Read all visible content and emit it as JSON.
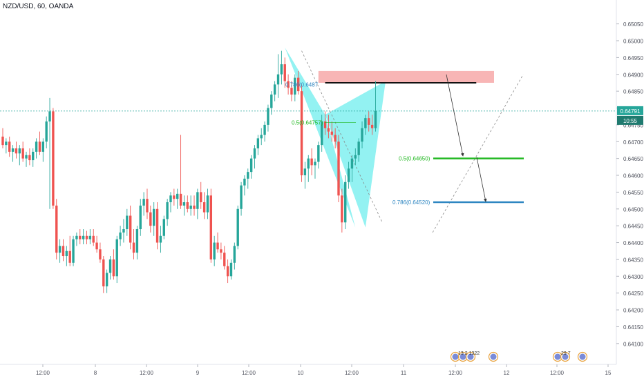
{
  "symbol_header": "NZD/USD, 60, OANDA",
  "price_badge": {
    "price": "0.64791",
    "countdown": "10:55"
  },
  "colors": {
    "up": "#26a69a",
    "down": "#ef5350",
    "pattern_fill": "#80f0f0",
    "sell_zone": "#f7a8a8",
    "target1": "#22b822",
    "target2": "#2e86c1",
    "last_price_line": "#26a69a",
    "grid_axis": "#e0e3eb"
  },
  "annotations": {
    "fib_0786_top": "0.786(0.6487",
    "fib_05": "0.5(0.64757)",
    "fib_target1": "0.5(0.64650)",
    "fib_target2": "0.786(0.64520)"
  },
  "event_badges": {
    "group1": "13 2 1322",
    "group2": "29 7"
  },
  "chart_data": {
    "type": "candlestick",
    "title": "NZD/USD, 60, OANDA",
    "ylim": [
      0.64075,
      0.6508
    ],
    "y_ticks": [
      "0.65050",
      "0.65000",
      "0.64950",
      "0.64900",
      "0.64850",
      "0.64800",
      "0.64750",
      "0.64700",
      "0.64650",
      "0.64600",
      "0.64550",
      "0.64500",
      "0.64450",
      "0.64400",
      "0.64350",
      "0.64300",
      "0.64250",
      "0.64200",
      "0.64150",
      "0.64100"
    ],
    "x_ticks": [
      "12:00",
      "8",
      "12:00",
      "9",
      "12:00",
      "10",
      "12:00",
      "11",
      "12:00",
      "12",
      "12:00",
      "15"
    ],
    "last_price": 0.64791,
    "candles": [
      {
        "o": 0.64715,
        "h": 0.6474,
        "l": 0.6468,
        "c": 0.6469
      },
      {
        "o": 0.6469,
        "h": 0.6471,
        "l": 0.64665,
        "c": 0.647
      },
      {
        "o": 0.647,
        "h": 0.64715,
        "l": 0.64655,
        "c": 0.6467
      },
      {
        "o": 0.6467,
        "h": 0.6469,
        "l": 0.6464,
        "c": 0.6468
      },
      {
        "o": 0.6468,
        "h": 0.647,
        "l": 0.6465,
        "c": 0.64665
      },
      {
        "o": 0.64665,
        "h": 0.6469,
        "l": 0.6463,
        "c": 0.6468
      },
      {
        "o": 0.6468,
        "h": 0.647,
        "l": 0.6464,
        "c": 0.6465
      },
      {
        "o": 0.6465,
        "h": 0.6467,
        "l": 0.64625,
        "c": 0.6466
      },
      {
        "o": 0.6466,
        "h": 0.6468,
        "l": 0.6463,
        "c": 0.64645
      },
      {
        "o": 0.64645,
        "h": 0.6468,
        "l": 0.64625,
        "c": 0.6467
      },
      {
        "o": 0.6467,
        "h": 0.6471,
        "l": 0.6465,
        "c": 0.647
      },
      {
        "o": 0.647,
        "h": 0.6473,
        "l": 0.6466,
        "c": 0.6467
      },
      {
        "o": 0.6467,
        "h": 0.6471,
        "l": 0.6464,
        "c": 0.647
      },
      {
        "o": 0.647,
        "h": 0.64775,
        "l": 0.6468,
        "c": 0.6476
      },
      {
        "o": 0.6476,
        "h": 0.6483,
        "l": 0.645,
        "c": 0.6479
      },
      {
        "o": 0.6479,
        "h": 0.648,
        "l": 0.645,
        "c": 0.6451
      },
      {
        "o": 0.6451,
        "h": 0.6453,
        "l": 0.6435,
        "c": 0.6437
      },
      {
        "o": 0.6437,
        "h": 0.6441,
        "l": 0.6434,
        "c": 0.6439
      },
      {
        "o": 0.6439,
        "h": 0.6441,
        "l": 0.64345,
        "c": 0.6436
      },
      {
        "o": 0.6436,
        "h": 0.6439,
        "l": 0.6433,
        "c": 0.64375
      },
      {
        "o": 0.64375,
        "h": 0.6442,
        "l": 0.6433,
        "c": 0.6434
      },
      {
        "o": 0.6434,
        "h": 0.6442,
        "l": 0.6433,
        "c": 0.6441
      },
      {
        "o": 0.6441,
        "h": 0.6443,
        "l": 0.6439,
        "c": 0.6442
      },
      {
        "o": 0.6442,
        "h": 0.6444,
        "l": 0.64395,
        "c": 0.6441
      },
      {
        "o": 0.6441,
        "h": 0.6444,
        "l": 0.64395,
        "c": 0.6442
      },
      {
        "o": 0.6442,
        "h": 0.64435,
        "l": 0.64395,
        "c": 0.6441
      },
      {
        "o": 0.6441,
        "h": 0.6444,
        "l": 0.64395,
        "c": 0.6442
      },
      {
        "o": 0.6442,
        "h": 0.6444,
        "l": 0.6439,
        "c": 0.644
      },
      {
        "o": 0.644,
        "h": 0.6442,
        "l": 0.6437,
        "c": 0.6438
      },
      {
        "o": 0.6438,
        "h": 0.644,
        "l": 0.6434,
        "c": 0.6435
      },
      {
        "o": 0.6435,
        "h": 0.6436,
        "l": 0.6425,
        "c": 0.6427
      },
      {
        "o": 0.6427,
        "h": 0.6432,
        "l": 0.6425,
        "c": 0.6431
      },
      {
        "o": 0.6431,
        "h": 0.6436,
        "l": 0.6429,
        "c": 0.6435
      },
      {
        "o": 0.6435,
        "h": 0.6438,
        "l": 0.6429,
        "c": 0.643
      },
      {
        "o": 0.643,
        "h": 0.6442,
        "l": 0.6428,
        "c": 0.6441
      },
      {
        "o": 0.6441,
        "h": 0.6445,
        "l": 0.6439,
        "c": 0.6443
      },
      {
        "o": 0.6443,
        "h": 0.6447,
        "l": 0.644,
        "c": 0.6444
      },
      {
        "o": 0.6444,
        "h": 0.645,
        "l": 0.6442,
        "c": 0.6448
      },
      {
        "o": 0.6448,
        "h": 0.6451,
        "l": 0.6438,
        "c": 0.644
      },
      {
        "o": 0.644,
        "h": 0.6444,
        "l": 0.6435,
        "c": 0.6437
      },
      {
        "o": 0.6437,
        "h": 0.6445,
        "l": 0.6435,
        "c": 0.6444
      },
      {
        "o": 0.6444,
        "h": 0.6453,
        "l": 0.6442,
        "c": 0.6451
      },
      {
        "o": 0.6451,
        "h": 0.6455,
        "l": 0.6448,
        "c": 0.6453
      },
      {
        "o": 0.6453,
        "h": 0.6456,
        "l": 0.6447,
        "c": 0.6449
      },
      {
        "o": 0.6449,
        "h": 0.6451,
        "l": 0.6443,
        "c": 0.6445
      },
      {
        "o": 0.6445,
        "h": 0.6452,
        "l": 0.6442,
        "c": 0.645
      },
      {
        "o": 0.645,
        "h": 0.6452,
        "l": 0.6438,
        "c": 0.644
      },
      {
        "o": 0.644,
        "h": 0.6445,
        "l": 0.6437,
        "c": 0.6442
      },
      {
        "o": 0.6442,
        "h": 0.6448,
        "l": 0.6441,
        "c": 0.6447
      },
      {
        "o": 0.6447,
        "h": 0.6453,
        "l": 0.6445,
        "c": 0.6452
      },
      {
        "o": 0.6452,
        "h": 0.6455,
        "l": 0.6449,
        "c": 0.6454
      },
      {
        "o": 0.6454,
        "h": 0.6456,
        "l": 0.6451,
        "c": 0.6453
      },
      {
        "o": 0.6453,
        "h": 0.6456,
        "l": 0.645,
        "c": 0.64545
      },
      {
        "o": 0.64545,
        "h": 0.6472,
        "l": 0.645,
        "c": 0.6451
      },
      {
        "o": 0.6451,
        "h": 0.6454,
        "l": 0.6448,
        "c": 0.6452
      },
      {
        "o": 0.6452,
        "h": 0.6454,
        "l": 0.6449,
        "c": 0.645
      },
      {
        "o": 0.645,
        "h": 0.6454,
        "l": 0.6448,
        "c": 0.6451
      },
      {
        "o": 0.6451,
        "h": 0.6454,
        "l": 0.6448,
        "c": 0.645
      },
      {
        "o": 0.645,
        "h": 0.6456,
        "l": 0.6447,
        "c": 0.6455
      },
      {
        "o": 0.6455,
        "h": 0.6458,
        "l": 0.645,
        "c": 0.6452
      },
      {
        "o": 0.6452,
        "h": 0.6455,
        "l": 0.6447,
        "c": 0.6449
      },
      {
        "o": 0.6449,
        "h": 0.6456,
        "l": 0.6447,
        "c": 0.6454
      },
      {
        "o": 0.6454,
        "h": 0.6456,
        "l": 0.6434,
        "c": 0.6435
      },
      {
        "o": 0.6435,
        "h": 0.6442,
        "l": 0.6433,
        "c": 0.644
      },
      {
        "o": 0.644,
        "h": 0.6443,
        "l": 0.6437,
        "c": 0.6438
      },
      {
        "o": 0.6438,
        "h": 0.644,
        "l": 0.6435,
        "c": 0.6437
      },
      {
        "o": 0.6437,
        "h": 0.6439,
        "l": 0.6432,
        "c": 0.6433
      },
      {
        "o": 0.6433,
        "h": 0.6435,
        "l": 0.6428,
        "c": 0.643
      },
      {
        "o": 0.643,
        "h": 0.6435,
        "l": 0.6429,
        "c": 0.6434
      },
      {
        "o": 0.6434,
        "h": 0.644,
        "l": 0.6432,
        "c": 0.6439
      },
      {
        "o": 0.6439,
        "h": 0.6451,
        "l": 0.6438,
        "c": 0.645
      },
      {
        "o": 0.645,
        "h": 0.6458,
        "l": 0.6448,
        "c": 0.6457
      },
      {
        "o": 0.6457,
        "h": 0.646,
        "l": 0.6454,
        "c": 0.6459
      },
      {
        "o": 0.6459,
        "h": 0.6462,
        "l": 0.6456,
        "c": 0.6461
      },
      {
        "o": 0.6461,
        "h": 0.6466,
        "l": 0.6459,
        "c": 0.6465
      },
      {
        "o": 0.6465,
        "h": 0.6469,
        "l": 0.6462,
        "c": 0.6468
      },
      {
        "o": 0.6468,
        "h": 0.6472,
        "l": 0.6466,
        "c": 0.6471
      },
      {
        "o": 0.6471,
        "h": 0.6474,
        "l": 0.6469,
        "c": 0.6472
      },
      {
        "o": 0.6472,
        "h": 0.6476,
        "l": 0.647,
        "c": 0.6475
      },
      {
        "o": 0.6475,
        "h": 0.6481,
        "l": 0.6473,
        "c": 0.648
      },
      {
        "o": 0.648,
        "h": 0.6485,
        "l": 0.6478,
        "c": 0.6484
      },
      {
        "o": 0.6484,
        "h": 0.6488,
        "l": 0.6482,
        "c": 0.6487
      },
      {
        "o": 0.6487,
        "h": 0.6496,
        "l": 0.6483,
        "c": 0.649
      },
      {
        "o": 0.649,
        "h": 0.6497,
        "l": 0.6487,
        "c": 0.6493
      },
      {
        "o": 0.6493,
        "h": 0.6495,
        "l": 0.6486,
        "c": 0.6488
      },
      {
        "o": 0.6488,
        "h": 0.649,
        "l": 0.6484,
        "c": 0.6486
      },
      {
        "o": 0.6486,
        "h": 0.6488,
        "l": 0.6482,
        "c": 0.6484
      },
      {
        "o": 0.6484,
        "h": 0.649,
        "l": 0.6482,
        "c": 0.6489
      },
      {
        "o": 0.6489,
        "h": 0.6491,
        "l": 0.6484,
        "c": 0.6485
      },
      {
        "o": 0.6485,
        "h": 0.6487,
        "l": 0.6458,
        "c": 0.646
      },
      {
        "o": 0.646,
        "h": 0.6464,
        "l": 0.6456,
        "c": 0.6462
      },
      {
        "o": 0.6462,
        "h": 0.6466,
        "l": 0.6458,
        "c": 0.6465
      },
      {
        "o": 0.6465,
        "h": 0.6468,
        "l": 0.646,
        "c": 0.6463
      },
      {
        "o": 0.6463,
        "h": 0.6465,
        "l": 0.6459,
        "c": 0.6464
      },
      {
        "o": 0.6464,
        "h": 0.647,
        "l": 0.6462,
        "c": 0.6469
      },
      {
        "o": 0.6469,
        "h": 0.6478,
        "l": 0.6467,
        "c": 0.6476
      },
      {
        "o": 0.6476,
        "h": 0.6479,
        "l": 0.6472,
        "c": 0.6474
      },
      {
        "o": 0.6474,
        "h": 0.6478,
        "l": 0.6471,
        "c": 0.6473
      },
      {
        "o": 0.6473,
        "h": 0.6476,
        "l": 0.647,
        "c": 0.6472
      },
      {
        "o": 0.6472,
        "h": 0.6474,
        "l": 0.6468,
        "c": 0.647
      },
      {
        "o": 0.647,
        "h": 0.6472,
        "l": 0.6452,
        "c": 0.6454
      },
      {
        "o": 0.6454,
        "h": 0.6456,
        "l": 0.6443,
        "c": 0.6446
      },
      {
        "o": 0.6446,
        "h": 0.646,
        "l": 0.6444,
        "c": 0.6458
      },
      {
        "o": 0.6458,
        "h": 0.6464,
        "l": 0.6456,
        "c": 0.6462
      },
      {
        "o": 0.6462,
        "h": 0.6466,
        "l": 0.6458,
        "c": 0.6465
      },
      {
        "o": 0.6465,
        "h": 0.6468,
        "l": 0.6463,
        "c": 0.6466
      },
      {
        "o": 0.6466,
        "h": 0.6471,
        "l": 0.6464,
        "c": 0.647
      },
      {
        "o": 0.647,
        "h": 0.6476,
        "l": 0.6468,
        "c": 0.6474
      },
      {
        "o": 0.6474,
        "h": 0.6478,
        "l": 0.6472,
        "c": 0.6477
      },
      {
        "o": 0.6477,
        "h": 0.6479,
        "l": 0.6473,
        "c": 0.6475
      },
      {
        "o": 0.6475,
        "h": 0.6478,
        "l": 0.6472,
        "c": 0.6474
      },
      {
        "o": 0.6474,
        "h": 0.6488,
        "l": 0.6473,
        "c": 0.64791
      }
    ],
    "harmonic_pattern": {
      "X": {
        "index": 84,
        "price": 0.6498
      },
      "A": {
        "index": 105,
        "price": 0.64445
      },
      "B": {
        "index": 96,
        "price": 0.6478
      },
      "C": {
        "index": 108,
        "price": 0.64445
      },
      "D": {
        "index": 114,
        "price": 0.6488
      }
    },
    "levels": [
      {
        "label": "0.786(0.6487",
        "price": 0.6487
      },
      {
        "label": "0.5(0.64757)",
        "price": 0.64757
      },
      {
        "label": "0.5(0.64650)",
        "price": 0.6465
      },
      {
        "label": "0.786(0.64520)",
        "price": 0.6452
      }
    ],
    "sell_zone": {
      "from": 0.64875,
      "to": 0.6491
    },
    "grid": false,
    "legend": "none"
  }
}
